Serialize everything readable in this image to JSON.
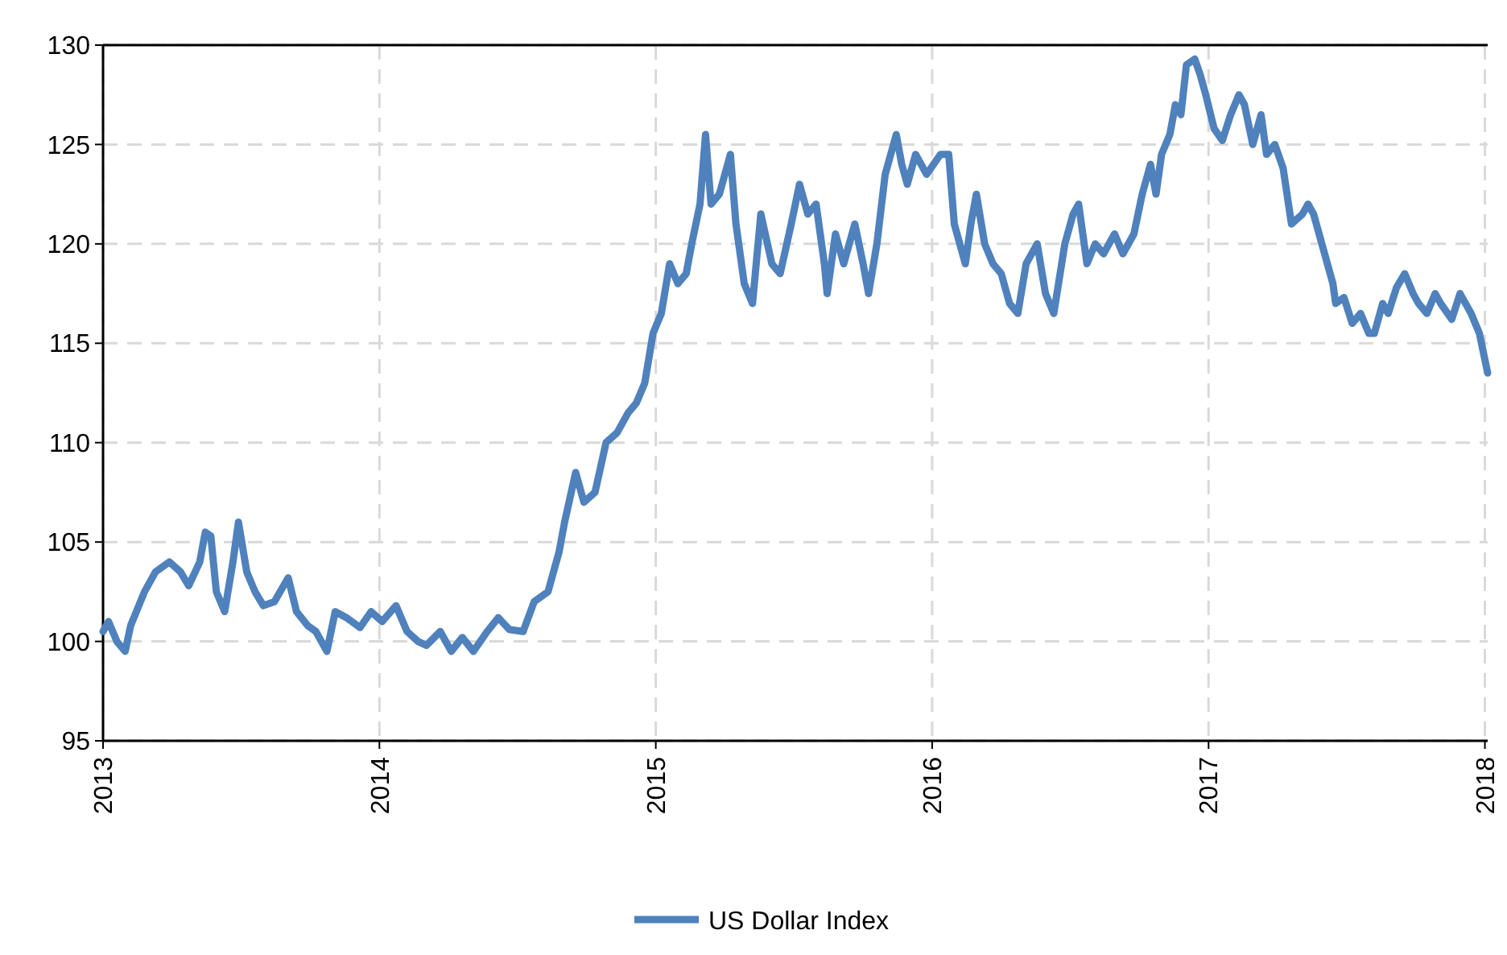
{
  "chart_data": {
    "type": "line",
    "xlim": [
      2013,
      2018.01
    ],
    "xticks": [
      2013,
      2014,
      2015,
      2016,
      2017,
      2018
    ],
    "ylim": [
      95,
      130
    ],
    "yticks": [
      95,
      100,
      105,
      110,
      115,
      120,
      125,
      130
    ],
    "grid": true,
    "legend": "bottom",
    "line_style": "solid",
    "marker": "none",
    "series": [
      {
        "name": "US Dollar Index",
        "color": "#4f81bd",
        "x": [
          2013.0,
          2013.02,
          2013.05,
          2013.08,
          2013.1,
          2013.15,
          2013.19,
          2013.24,
          2013.28,
          2013.31,
          2013.35,
          2013.37,
          2013.39,
          2013.41,
          2013.44,
          2013.47,
          2013.49,
          2013.52,
          2013.55,
          2013.58,
          2013.62,
          2013.67,
          2013.7,
          2013.74,
          2013.77,
          2013.81,
          2013.84,
          2013.88,
          2013.93,
          2013.97,
          2014.01,
          2014.06,
          2014.1,
          2014.14,
          2014.17,
          2014.22,
          2014.26,
          2014.3,
          2014.34,
          2014.39,
          2014.43,
          2014.47,
          2014.52,
          2014.56,
          2014.61,
          2014.65,
          2014.67,
          2014.71,
          2014.74,
          2014.78,
          2014.82,
          2014.86,
          2014.9,
          2014.93,
          2014.96,
          2014.99,
          2015.02,
          2015.05,
          2015.08,
          2015.11,
          2015.13,
          2015.16,
          2015.18,
          2015.2,
          2015.23,
          2015.27,
          2015.29,
          2015.32,
          2015.35,
          2015.38,
          2015.42,
          2015.45,
          2015.49,
          2015.52,
          2015.55,
          2015.58,
          2015.61,
          2015.62,
          2015.65,
          2015.68,
          2015.72,
          2015.75,
          2015.77,
          2015.8,
          2015.83,
          2015.87,
          2015.89,
          2015.91,
          2015.94,
          2015.98,
          2016.03,
          2016.06,
          2016.08,
          2016.12,
          2016.14,
          2016.16,
          2016.19,
          2016.22,
          2016.25,
          2016.28,
          2016.31,
          2016.34,
          2016.38,
          2016.41,
          2016.44,
          2016.48,
          2016.51,
          2016.53,
          2016.56,
          2016.59,
          2016.62,
          2016.66,
          2016.69,
          2016.73,
          2016.76,
          2016.79,
          2016.81,
          2016.83,
          2016.86,
          2016.88,
          2016.9,
          2016.92,
          2016.95,
          2016.97,
          2016.99,
          2017.02,
          2017.05,
          2017.08,
          2017.11,
          2017.13,
          2017.16,
          2017.19,
          2017.21,
          2017.24,
          2017.27,
          2017.3,
          2017.34,
          2017.36,
          2017.38,
          2017.42,
          2017.45,
          2017.46,
          2017.49,
          2017.52,
          2017.55,
          2017.58,
          2017.6,
          2017.63,
          2017.65,
          2017.68,
          2017.71,
          2017.74,
          2017.76,
          2017.79,
          2017.82,
          2017.84,
          2017.88,
          2017.91,
          2017.95,
          2017.98,
          2018.01
        ],
        "values": [
          100.5,
          101,
          100,
          99.5,
          100.8,
          102.5,
          103.5,
          104,
          103.5,
          102.8,
          104,
          105.5,
          105.3,
          102.5,
          101.5,
          104,
          106,
          103.5,
          102.5,
          101.8,
          102,
          103.2,
          101.5,
          100.8,
          100.5,
          99.5,
          101.5,
          101.2,
          100.7,
          101.5,
          101,
          101.8,
          100.5,
          100,
          99.8,
          100.5,
          99.5,
          100.2,
          99.5,
          100.5,
          101.2,
          100.6,
          100.5,
          102,
          102.5,
          104.5,
          106,
          108.5,
          107,
          107.5,
          110,
          110.5,
          111.5,
          112,
          113,
          115.5,
          116.5,
          119,
          118,
          118.5,
          120,
          122,
          125.5,
          122,
          122.5,
          124.5,
          121,
          118,
          117,
          121.5,
          119,
          118.5,
          121,
          123,
          121.5,
          122,
          119,
          117.5,
          120.5,
          119,
          121,
          119,
          117.5,
          120,
          123.5,
          125.5,
          124,
          123,
          124.5,
          123.5,
          124.5,
          124.5,
          121,
          119,
          121,
          122.5,
          120,
          119,
          118.5,
          117,
          116.5,
          119,
          120,
          117.5,
          116.5,
          120,
          121.5,
          122,
          119,
          120,
          119.5,
          120.5,
          119.5,
          120.5,
          122.5,
          124,
          122.5,
          124.5,
          125.5,
          127,
          126.5,
          129,
          129.3,
          128.5,
          127.5,
          125.8,
          125.2,
          126.5,
          127.5,
          127,
          125,
          126.5,
          124.5,
          125,
          123.8,
          121,
          121.5,
          122,
          121.5,
          119.5,
          118,
          117,
          117.3,
          116,
          116.5,
          115.5,
          115.5,
          117,
          116.5,
          117.8,
          118.5,
          117.5,
          117,
          116.5,
          117.5,
          117,
          116.2,
          117.5,
          116.5,
          115.5,
          113.5
        ]
      }
    ]
  }
}
